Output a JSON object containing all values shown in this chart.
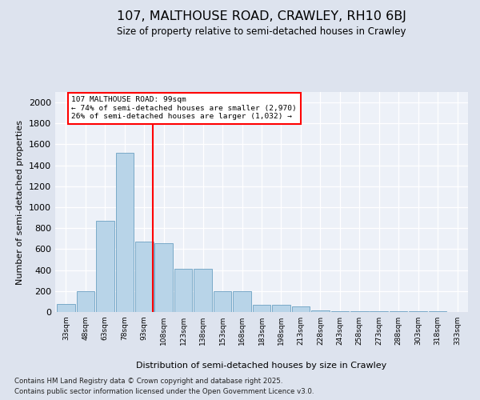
{
  "title": "107, MALTHOUSE ROAD, CRAWLEY, RH10 6BJ",
  "subtitle": "Size of property relative to semi-detached houses in Crawley",
  "xlabel": "Distribution of semi-detached houses by size in Crawley",
  "ylabel": "Number of semi-detached properties",
  "bins": [
    "33sqm",
    "48sqm",
    "63sqm",
    "78sqm",
    "93sqm",
    "108sqm",
    "123sqm",
    "138sqm",
    "153sqm",
    "168sqm",
    "183sqm",
    "198sqm",
    "213sqm",
    "228sqm",
    "243sqm",
    "258sqm",
    "273sqm",
    "288sqm",
    "303sqm",
    "318sqm",
    "333sqm"
  ],
  "bar_values": [
    75,
    200,
    870,
    1520,
    670,
    660,
    415,
    415,
    195,
    195,
    70,
    65,
    50,
    15,
    5,
    5,
    5,
    5,
    5,
    5,
    0
  ],
  "bar_color": "#b8d4e8",
  "bar_edge_color": "#7aaac8",
  "vline_pos": 4.45,
  "annotation_title": "107 MALTHOUSE ROAD: 99sqm",
  "annotation_line1": "← 74% of semi-detached houses are smaller (2,970)",
  "annotation_line2": "26% of semi-detached houses are larger (1,032) →",
  "ylim": [
    0,
    2100
  ],
  "yticks": [
    0,
    200,
    400,
    600,
    800,
    1000,
    1200,
    1400,
    1600,
    1800,
    2000
  ],
  "footer1": "Contains HM Land Registry data © Crown copyright and database right 2025.",
  "footer2": "Contains public sector information licensed under the Open Government Licence v3.0.",
  "bg_color": "#dde3ee",
  "plot_bg_color": "#edf1f8"
}
